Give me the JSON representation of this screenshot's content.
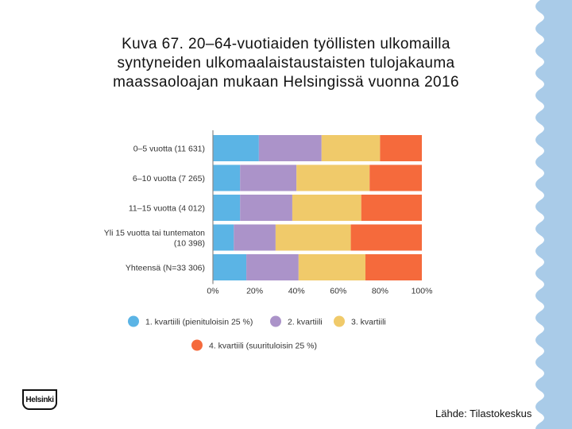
{
  "slide": {
    "title_lines": [
      "Kuva 67. 20–64-vuotiaiden työllisten ulkomailla",
      "syntyneiden ulkomaalaistaustaisten tulojakauma",
      "maassaoloajan mukaan Helsingissä vuonna 2016"
    ],
    "source": "Lähde: Tilastokeskus",
    "logo_text": "Helsinki"
  },
  "colors": {
    "q1": "#5bb4e5",
    "q2": "#ab93c9",
    "q3": "#f0ca6a",
    "q4": "#f56a3c",
    "axis_text": "#333333",
    "deco": "#a9cbe8"
  },
  "chart_data": {
    "type": "bar",
    "orientation": "horizontal",
    "stacked": true,
    "percent": true,
    "categories": [
      [
        "0–5 vuotta (11 631)"
      ],
      [
        "6–10 vuotta (7 265)"
      ],
      [
        "11–15 vuotta (4 012)"
      ],
      [
        "Yli 15 vuotta tai tuntematon",
        "(10 398)"
      ],
      [
        "Yhteensä (N=33 306)"
      ]
    ],
    "series": [
      {
        "name": "1. kvartiili (pienituloisin 25 %)",
        "color_key": "q1",
        "values": [
          22,
          13,
          13,
          10,
          16
        ]
      },
      {
        "name": "2. kvartiili",
        "color_key": "q2",
        "values": [
          30,
          27,
          25,
          20,
          25
        ]
      },
      {
        "name": "3. kvartiili",
        "color_key": "q3",
        "values": [
          28,
          35,
          33,
          36,
          32
        ]
      },
      {
        "name": "4. kvartiili (suurituloisin 25 %)",
        "color_key": "q4",
        "values": [
          20,
          25,
          29,
          34,
          27
        ]
      }
    ],
    "xlim": [
      0,
      100
    ],
    "xticks": [
      "0%",
      "20%",
      "40%",
      "60%",
      "80%",
      "100%"
    ],
    "title": "",
    "xlabel": "",
    "ylabel": ""
  }
}
